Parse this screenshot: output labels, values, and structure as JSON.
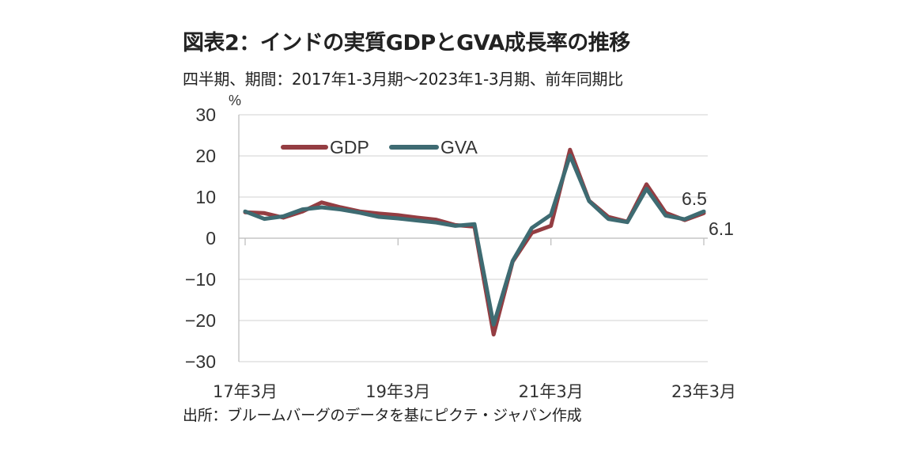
{
  "title": "図表2：インドの実質GDPとGVA成長率の推移",
  "subtitle": "四半期、期間：2017年1-3月期～2023年1-3月期、前年同期比",
  "source": "出所：ブルームバーグのデータを基にピクテ・ジャパン作成",
  "chart_data": {
    "type": "line",
    "ylabel": "%",
    "ylim": [
      -30,
      30
    ],
    "yticks": [
      30,
      20,
      10,
      0,
      -10,
      -20,
      -30
    ],
    "xtick_labels": [
      "17年3月",
      "19年3月",
      "21年3月",
      "23年3月"
    ],
    "xtick_index": [
      0,
      8,
      16,
      24
    ],
    "x": [
      "2017Q1",
      "2017Q2",
      "2017Q3",
      "2017Q4",
      "2018Q1",
      "2018Q2",
      "2018Q3",
      "2018Q4",
      "2019Q1",
      "2019Q2",
      "2019Q3",
      "2019Q4",
      "2020Q1",
      "2020Q2",
      "2020Q3",
      "2020Q4",
      "2021Q1",
      "2021Q2",
      "2021Q3",
      "2021Q4",
      "2022Q1",
      "2022Q2",
      "2022Q3",
      "2022Q4",
      "2023Q1"
    ],
    "series": [
      {
        "name": "GDP",
        "color": "#943d42",
        "values": [
          6.3,
          6.1,
          5.0,
          6.5,
          8.7,
          7.5,
          6.5,
          6.0,
          5.6,
          5.0,
          4.5,
          3.2,
          2.8,
          -23.4,
          -5.7,
          1.3,
          3.0,
          21.5,
          9.1,
          5.2,
          4.0,
          13.1,
          6.2,
          4.4,
          6.1
        ]
      },
      {
        "name": "GVA",
        "color": "#3e6b72",
        "values": [
          6.5,
          4.7,
          5.3,
          7.0,
          7.5,
          7.0,
          6.2,
          5.2,
          4.8,
          4.3,
          3.8,
          3.0,
          3.4,
          -21.0,
          -5.5,
          2.5,
          5.7,
          20.1,
          9.0,
          4.7,
          3.9,
          12.0,
          5.5,
          4.6,
          6.5
        ]
      }
    ],
    "annotations": [
      {
        "text": "6.5",
        "series": "GVA"
      },
      {
        "text": "6.1",
        "series": "GDP"
      }
    ],
    "legend_position": "top-left",
    "grid": true
  }
}
